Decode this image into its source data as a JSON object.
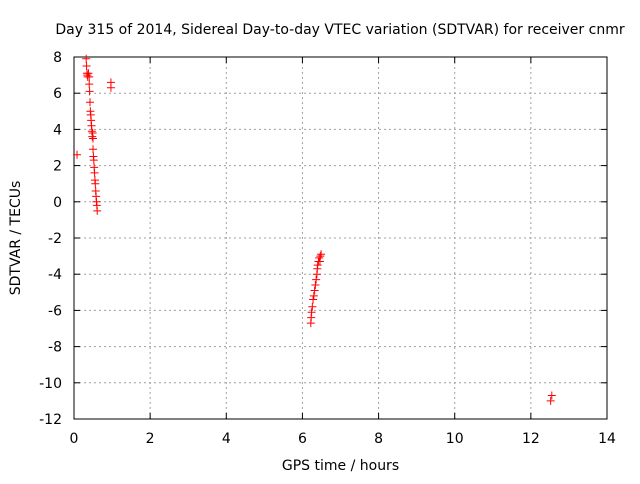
{
  "chart_data": {
    "type": "scatter",
    "title": "Day 315 of 2014, Sidereal Day-to-day VTEC variation (SDTVAR) for receiver cnmr",
    "xlabel": "GPS time / hours",
    "ylabel": "SDTVAR / TECUs",
    "xlim": [
      0,
      14
    ],
    "ylim": [
      -12,
      8
    ],
    "x_ticks": [
      "0",
      "2",
      "4",
      "6",
      "8",
      "10",
      "12",
      "14"
    ],
    "y_ticks": [
      "8",
      "6",
      "4",
      "2",
      "0",
      "-2",
      "-4",
      "-6",
      "-8",
      "-10",
      "-12"
    ],
    "grid": true,
    "marker": "+",
    "marker_color": "#ff0000",
    "series": [
      {
        "points": [
          [
            0.08,
            2.6
          ],
          [
            0.32,
            7.9
          ],
          [
            0.33,
            7.5
          ],
          [
            0.34,
            7.1
          ],
          [
            0.35,
            7.0
          ],
          [
            0.36,
            6.9
          ],
          [
            0.38,
            7.1
          ],
          [
            0.4,
            6.9
          ],
          [
            0.4,
            6.5
          ],
          [
            0.41,
            6.1
          ],
          [
            0.42,
            5.5
          ],
          [
            0.43,
            5.0
          ],
          [
            0.44,
            4.8
          ],
          [
            0.45,
            4.5
          ],
          [
            0.46,
            4.2
          ],
          [
            0.47,
            3.9
          ],
          [
            0.48,
            3.6
          ],
          [
            0.49,
            3.8
          ],
          [
            0.5,
            3.5
          ],
          [
            0.5,
            2.9
          ],
          [
            0.51,
            2.5
          ],
          [
            0.52,
            2.3
          ],
          [
            0.53,
            1.9
          ],
          [
            0.54,
            1.6
          ],
          [
            0.55,
            1.2
          ],
          [
            0.56,
            1.0
          ],
          [
            0.57,
            0.6
          ],
          [
            0.58,
            0.3
          ],
          [
            0.59,
            0.0
          ],
          [
            0.6,
            -0.2
          ],
          [
            0.61,
            -0.5
          ],
          [
            0.97,
            6.6
          ],
          [
            0.97,
            6.3
          ],
          [
            6.22,
            -6.7
          ],
          [
            6.23,
            -6.4
          ],
          [
            6.24,
            -6.1
          ],
          [
            6.26,
            -5.8
          ],
          [
            6.28,
            -5.4
          ],
          [
            6.3,
            -5.2
          ],
          [
            6.32,
            -4.9
          ],
          [
            6.34,
            -4.6
          ],
          [
            6.36,
            -4.3
          ],
          [
            6.38,
            -4.0
          ],
          [
            6.39,
            -3.7
          ],
          [
            6.4,
            -3.5
          ],
          [
            6.42,
            -3.3
          ],
          [
            6.44,
            -3.1
          ],
          [
            6.46,
            -3.3
          ],
          [
            6.47,
            -3.0
          ],
          [
            6.49,
            -2.9
          ],
          [
            12.52,
            -11.0
          ],
          [
            12.55,
            -10.7
          ]
        ]
      }
    ]
  }
}
